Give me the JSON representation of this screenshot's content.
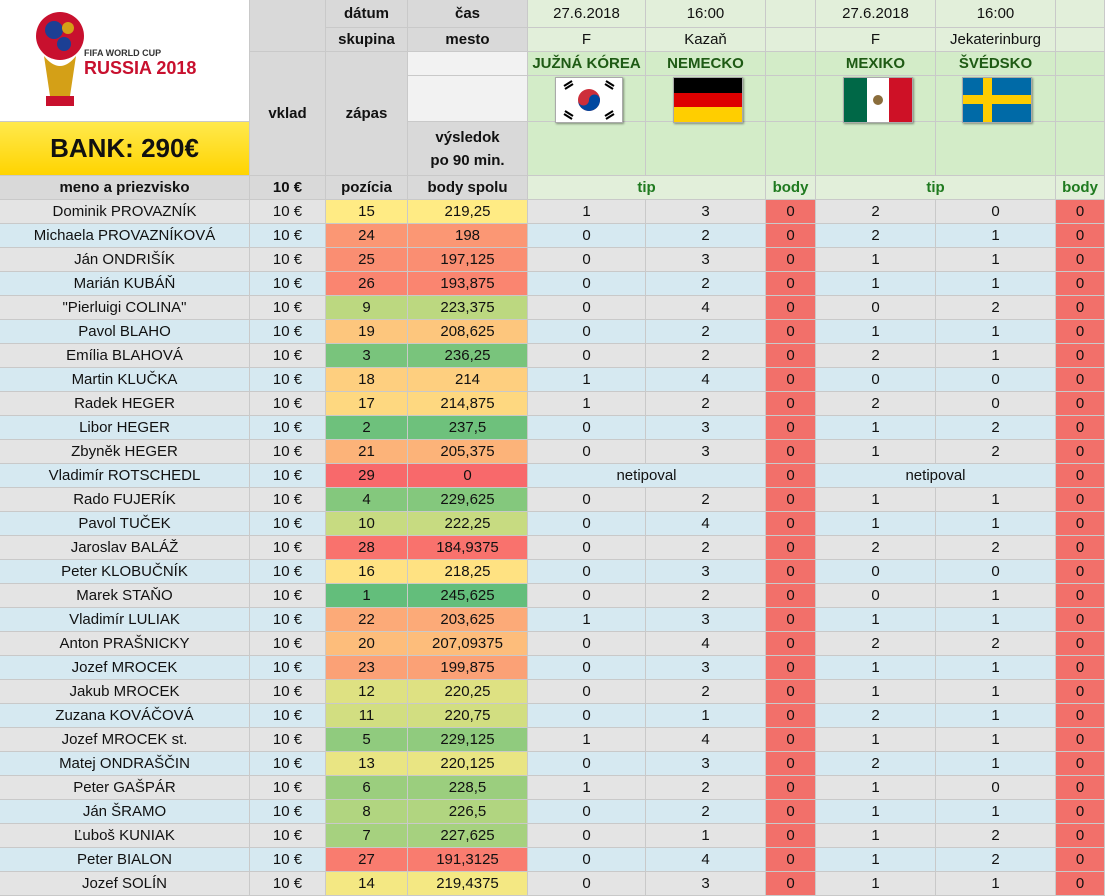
{
  "header": {
    "logo_small": "FIFA WORLD CUP",
    "logo_big": "RUSSIA 2018",
    "bank": "BANK: 290€",
    "labels": {
      "datum": "dátum",
      "cas": "čas",
      "skupina": "skupina",
      "mesto": "mesto",
      "vklad": "vklad",
      "zapas": "zápas",
      "vysledok1": "výsledok",
      "vysledok2": "po 90 min.",
      "meno": "meno a priezvisko",
      "vklad_val": "10 €",
      "pozicia": "pozícia",
      "body_spolu": "body spolu",
      "tip": "tip",
      "body": "body"
    },
    "matches": [
      {
        "date": "27.6.2018",
        "time": "16:00",
        "group": "F",
        "city": "Kazaň",
        "home": "JUŽNÁ KÓREA",
        "away": "NEMECKO",
        "home_flag": "south-korea-flag",
        "away_flag": "germany-flag"
      },
      {
        "date": "27.6.2018",
        "time": "16:00",
        "group": "F",
        "city": "Jekaterinburg",
        "home": "MEXIKO",
        "away": "ŠVÉDSKO",
        "home_flag": "mexico-flag",
        "away_flag": "sweden-flag"
      }
    ]
  },
  "colors": {
    "rank_best": "#63be7b",
    "rank_mid": "#ffeb84",
    "rank_worst": "#f8696b",
    "body_cell": "#f2706a",
    "tip_green": "#1f7a1f"
  },
  "rows": [
    {
      "name": "Dominik PROVAZNÍK",
      "vklad": "10 €",
      "pos": "15",
      "body": "219,25",
      "t1a": "1",
      "t1b": "3",
      "b1": "0",
      "t2a": "2",
      "t2b": "0",
      "b2": "0"
    },
    {
      "name": "Michaela PROVAZNÍKOVÁ",
      "vklad": "10 €",
      "pos": "24",
      "body": "198",
      "t1a": "0",
      "t1b": "2",
      "b1": "0",
      "t2a": "2",
      "t2b": "1",
      "b2": "0"
    },
    {
      "name": "Ján ONDRIŠÍK",
      "vklad": "10 €",
      "pos": "25",
      "body": "197,125",
      "t1a": "0",
      "t1b": "3",
      "b1": "0",
      "t2a": "1",
      "t2b": "1",
      "b2": "0"
    },
    {
      "name": "Marián KUBÁŇ",
      "vklad": "10 €",
      "pos": "26",
      "body": "193,875",
      "t1a": "0",
      "t1b": "2",
      "b1": "0",
      "t2a": "1",
      "t2b": "1",
      "b2": "0"
    },
    {
      "name": "\"Pierluigi COLINA\"",
      "vklad": "10 €",
      "pos": "9",
      "body": "223,375",
      "t1a": "0",
      "t1b": "4",
      "b1": "0",
      "t2a": "0",
      "t2b": "2",
      "b2": "0"
    },
    {
      "name": "Pavol BLAHO",
      "vklad": "10 €",
      "pos": "19",
      "body": "208,625",
      "t1a": "0",
      "t1b": "2",
      "b1": "0",
      "t2a": "1",
      "t2b": "1",
      "b2": "0"
    },
    {
      "name": "Emília BLAHOVÁ",
      "vklad": "10 €",
      "pos": "3",
      "body": "236,25",
      "t1a": "0",
      "t1b": "2",
      "b1": "0",
      "t2a": "2",
      "t2b": "1",
      "b2": "0"
    },
    {
      "name": "Martin KLUČKA",
      "vklad": "10 €",
      "pos": "18",
      "body": "214",
      "t1a": "1",
      "t1b": "4",
      "b1": "0",
      "t2a": "0",
      "t2b": "0",
      "b2": "0"
    },
    {
      "name": "Radek HEGER",
      "vklad": "10 €",
      "pos": "17",
      "body": "214,875",
      "t1a": "1",
      "t1b": "2",
      "b1": "0",
      "t2a": "2",
      "t2b": "0",
      "b2": "0"
    },
    {
      "name": "Libor HEGER",
      "vklad": "10 €",
      "pos": "2",
      "body": "237,5",
      "t1a": "0",
      "t1b": "3",
      "b1": "0",
      "t2a": "1",
      "t2b": "2",
      "b2": "0"
    },
    {
      "name": "Zbyněk HEGER",
      "vklad": "10 €",
      "pos": "21",
      "body": "205,375",
      "t1a": "0",
      "t1b": "3",
      "b1": "0",
      "t2a": "1",
      "t2b": "2",
      "b2": "0"
    },
    {
      "name": "Vladimír ROTSCHEDL",
      "vklad": "10 €",
      "pos": "29",
      "body": "0",
      "note": "netipoval",
      "b1": "0",
      "b2": "0"
    },
    {
      "name": "Rado FUJERÍK",
      "vklad": "10 €",
      "pos": "4",
      "body": "229,625",
      "t1a": "0",
      "t1b": "2",
      "b1": "0",
      "t2a": "1",
      "t2b": "1",
      "b2": "0"
    },
    {
      "name": "Pavol TUČEK",
      "vklad": "10 €",
      "pos": "10",
      "body": "222,25",
      "t1a": "0",
      "t1b": "4",
      "b1": "0",
      "t2a": "1",
      "t2b": "1",
      "b2": "0"
    },
    {
      "name": "Jaroslav BALÁŽ",
      "vklad": "10 €",
      "pos": "28",
      "body": "184,9375",
      "t1a": "0",
      "t1b": "2",
      "b1": "0",
      "t2a": "2",
      "t2b": "2",
      "b2": "0"
    },
    {
      "name": "Peter KLOBUČNÍK",
      "vklad": "10 €",
      "pos": "16",
      "body": "218,25",
      "t1a": "0",
      "t1b": "3",
      "b1": "0",
      "t2a": "0",
      "t2b": "0",
      "b2": "0"
    },
    {
      "name": "Marek STAŇO",
      "vklad": "10 €",
      "pos": "1",
      "body": "245,625",
      "t1a": "0",
      "t1b": "2",
      "b1": "0",
      "t2a": "0",
      "t2b": "1",
      "b2": "0"
    },
    {
      "name": "Vladimír LULIAK",
      "vklad": "10 €",
      "pos": "22",
      "body": "203,625",
      "t1a": "1",
      "t1b": "3",
      "b1": "0",
      "t2a": "1",
      "t2b": "1",
      "b2": "0"
    },
    {
      "name": "Anton PRAŠNICKY",
      "vklad": "10 €",
      "pos": "20",
      "body": "207,09375",
      "t1a": "0",
      "t1b": "4",
      "b1": "0",
      "t2a": "2",
      "t2b": "2",
      "b2": "0"
    },
    {
      "name": "Jozef MROCEK",
      "vklad": "10 €",
      "pos": "23",
      "body": "199,875",
      "t1a": "0",
      "t1b": "3",
      "b1": "0",
      "t2a": "1",
      "t2b": "1",
      "b2": "0"
    },
    {
      "name": "Jakub MROCEK",
      "vklad": "10 €",
      "pos": "12",
      "body": "220,25",
      "t1a": "0",
      "t1b": "2",
      "b1": "0",
      "t2a": "1",
      "t2b": "1",
      "b2": "0"
    },
    {
      "name": "Zuzana KOVÁČOVÁ",
      "vklad": "10 €",
      "pos": "11",
      "body": "220,75",
      "t1a": "0",
      "t1b": "1",
      "b1": "0",
      "t2a": "2",
      "t2b": "1",
      "b2": "0"
    },
    {
      "name": "Jozef MROCEK st.",
      "vklad": "10 €",
      "pos": "5",
      "body": "229,125",
      "t1a": "1",
      "t1b": "4",
      "b1": "0",
      "t2a": "1",
      "t2b": "1",
      "b2": "0"
    },
    {
      "name": "Matej ONDRAŠČIN",
      "vklad": "10 €",
      "pos": "13",
      "body": "220,125",
      "t1a": "0",
      "t1b": "3",
      "b1": "0",
      "t2a": "2",
      "t2b": "1",
      "b2": "0"
    },
    {
      "name": "Peter GAŠPÁR",
      "vklad": "10 €",
      "pos": "6",
      "body": "228,5",
      "t1a": "1",
      "t1b": "2",
      "b1": "0",
      "t2a": "1",
      "t2b": "0",
      "b2": "0"
    },
    {
      "name": "Ján ŠRAMO",
      "vklad": "10 €",
      "pos": "8",
      "body": "226,5",
      "t1a": "0",
      "t1b": "2",
      "b1": "0",
      "t2a": "1",
      "t2b": "1",
      "b2": "0"
    },
    {
      "name": "Ľuboš KUNIAK",
      "vklad": "10 €",
      "pos": "7",
      "body": "227,625",
      "t1a": "0",
      "t1b": "1",
      "b1": "0",
      "t2a": "1",
      "t2b": "2",
      "b2": "0"
    },
    {
      "name": "Peter BIALON",
      "vklad": "10 €",
      "pos": "27",
      "body": "191,3125",
      "t1a": "0",
      "t1b": "4",
      "b1": "0",
      "t2a": "1",
      "t2b": "2",
      "b2": "0"
    },
    {
      "name": "Jozef SOLÍN",
      "vklad": "10 €",
      "pos": "14",
      "body": "219,4375",
      "t1a": "0",
      "t1b": "3",
      "b1": "0",
      "t2a": "1",
      "t2b": "1",
      "b2": "0"
    }
  ]
}
